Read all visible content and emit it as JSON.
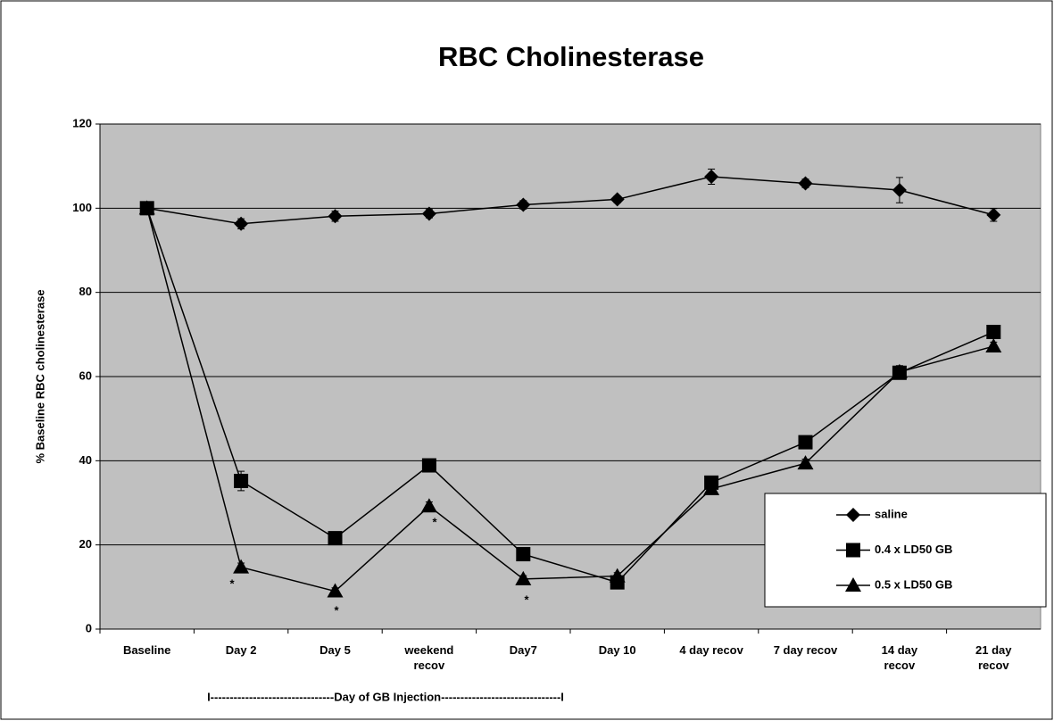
{
  "chart_data": {
    "type": "line",
    "title": "RBC Cholinesterase",
    "y_label": "% Baseline RBC cholinesterase",
    "x_note": "I--------------------------------Day of GB Injection-------------------------------I",
    "categories": [
      "Baseline",
      "Day 2",
      "Day 5",
      "weekend\nrecov",
      "Day7",
      "Day 10",
      "4 day recov",
      "7 day recov",
      "14 day\nrecov",
      "21 day\nrecov"
    ],
    "series": [
      {
        "name": "saline",
        "color": "#000000",
        "marker": "diamond",
        "values": [
          100,
          96.3,
          98.1,
          98.7,
          100.8,
          102.1,
          107.5,
          105.9,
          104.3,
          98.4
        ],
        "errors": [
          0,
          1.2,
          1.2,
          1,
          1,
          0.8,
          1.8,
          1,
          3,
          1.5
        ]
      },
      {
        "name": "0.4 x LD50 GB",
        "color": "#000000",
        "marker": "square",
        "values": [
          100,
          35.2,
          21.6,
          38.9,
          17.8,
          11.1,
          34.8,
          44.4,
          60.9,
          70.6
        ],
        "errors": [
          0,
          2.3,
          1,
          1.5,
          1,
          1,
          1,
          1,
          1,
          1.5
        ]
      },
      {
        "name": "0.5 x LD50 GB",
        "color": "#000000",
        "marker": "triangle",
        "values": [
          100,
          14.7,
          9.0,
          29.2,
          11.9,
          12.6,
          33.3,
          39.4,
          61.1,
          67.2
        ],
        "errors": [
          0,
          1,
          0.8,
          1,
          0.8,
          0.8,
          1,
          1,
          1.5,
          1
        ]
      }
    ],
    "annotations": [
      "*",
      "*",
      "*",
      "*"
    ],
    "ylim": [
      0,
      120
    ],
    "yticks": [
      0,
      20,
      40,
      60,
      80,
      100,
      120
    ],
    "grid": true,
    "plot_background": "#c0c0c0",
    "legend": "lower right"
  }
}
